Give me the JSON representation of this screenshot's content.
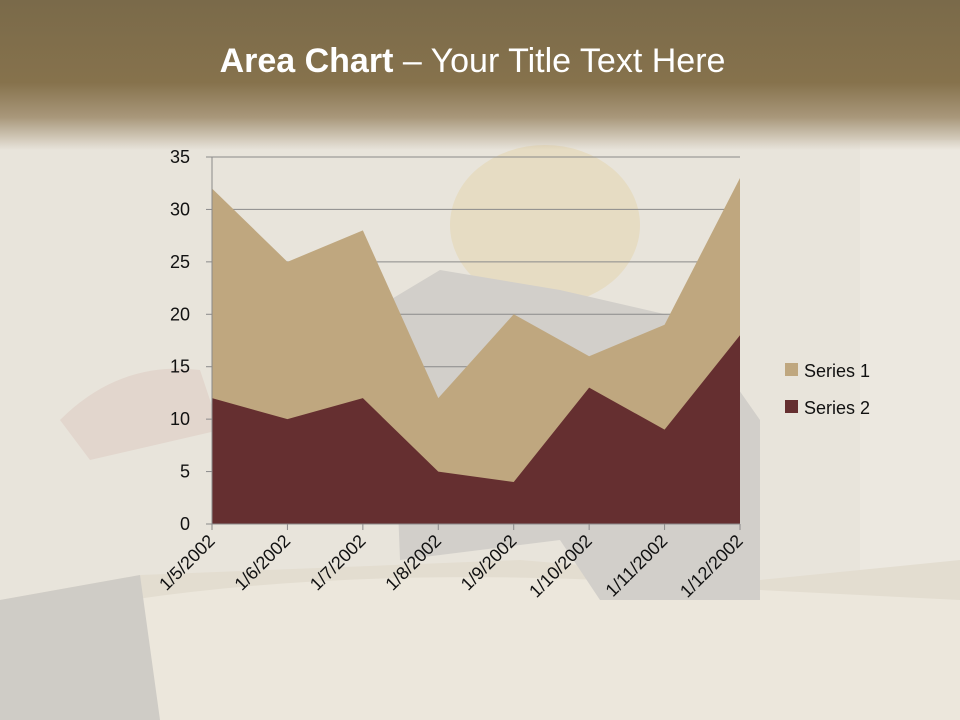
{
  "slide": {
    "title_bold": "Area Chart",
    "title_rest": " – Your Title Text Here"
  },
  "chart_data": {
    "type": "area",
    "title": "",
    "xlabel": "",
    "ylabel": "",
    "categories": [
      "1/5/2002",
      "1/6/2002",
      "1/7/2002",
      "1/8/2002",
      "1/9/2002",
      "1/10/2002",
      "1/11/2002",
      "1/12/2002"
    ],
    "ylim": [
      0,
      35
    ],
    "yticks": [
      0,
      5,
      10,
      15,
      20,
      25,
      30,
      35
    ],
    "grid": true,
    "legend": "right",
    "series": [
      {
        "name": "Series 1",
        "values": [
          32,
          25,
          28,
          12,
          20,
          16,
          19,
          33
        ],
        "color": "#bfa77f"
      },
      {
        "name": "Series 2",
        "values": [
          12,
          10,
          12,
          5,
          4,
          13,
          9,
          18
        ],
        "color": "#652f30"
      }
    ]
  }
}
